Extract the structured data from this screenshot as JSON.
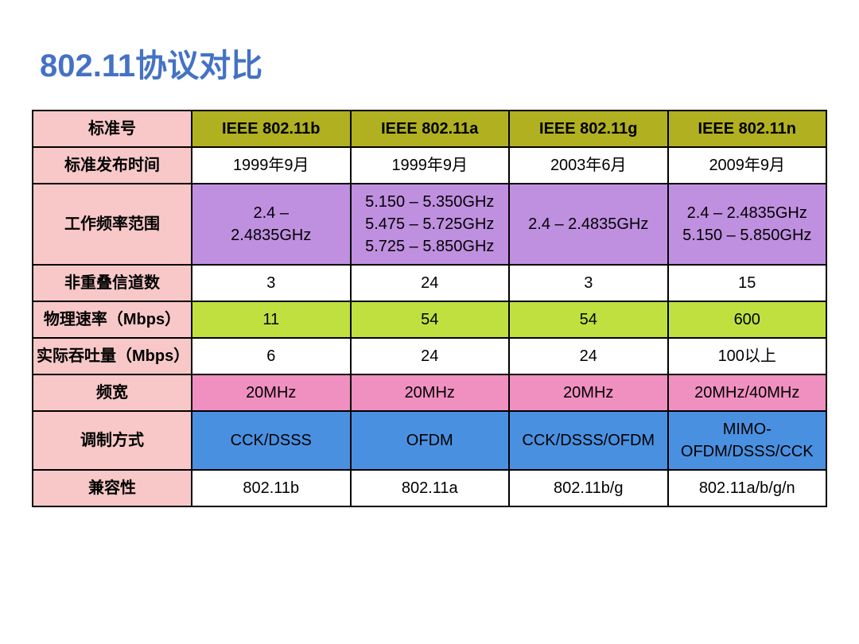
{
  "title": "802.11协议对比",
  "table": {
    "columns": [
      {
        "label": "标准号",
        "bg": "row-label"
      },
      {
        "label": "IEEE 802.11b",
        "bg": "hdr-cell"
      },
      {
        "label": "IEEE 802.11a",
        "bg": "hdr-cell"
      },
      {
        "label": "IEEE 802.11g",
        "bg": "hdr-cell"
      },
      {
        "label": "IEEE 802.11n",
        "bg": "hdr-cell"
      }
    ],
    "rows": [
      {
        "label": "标准发布时间",
        "cells": [
          {
            "text": "1999年9月",
            "bg": "bg-white"
          },
          {
            "text": "1999年9月",
            "bg": "bg-white"
          },
          {
            "text": "2003年6月",
            "bg": "bg-white"
          },
          {
            "text": "2009年9月",
            "bg": "bg-white"
          }
        ]
      },
      {
        "label": "工作频率范围",
        "cells": [
          {
            "text": "2.4 –\n2.4835GHz",
            "bg": "bg-purple"
          },
          {
            "text": "5.150 – 5.350GHz\n5.475 – 5.725GHz\n5.725 – 5.850GHz",
            "bg": "bg-purple"
          },
          {
            "text": "2.4 – 2.4835GHz",
            "bg": "bg-purple"
          },
          {
            "text": "2.4 – 2.4835GHz\n5.150 – 5.850GHz",
            "bg": "bg-purple"
          }
        ]
      },
      {
        "label": "非重叠信道数",
        "cells": [
          {
            "text": "3",
            "bg": "bg-white"
          },
          {
            "text": "24",
            "bg": "bg-white"
          },
          {
            "text": "3",
            "bg": "bg-white"
          },
          {
            "text": "15",
            "bg": "bg-white"
          }
        ]
      },
      {
        "label": "物理速率（Mbps）",
        "cells": [
          {
            "text": "11",
            "bg": "bg-lime"
          },
          {
            "text": "54",
            "bg": "bg-lime"
          },
          {
            "text": "54",
            "bg": "bg-lime"
          },
          {
            "text": "600",
            "bg": "bg-lime"
          }
        ]
      },
      {
        "label": "实际吞吐量（Mbps）",
        "cells": [
          {
            "text": "6",
            "bg": "bg-white"
          },
          {
            "text": "24",
            "bg": "bg-white"
          },
          {
            "text": "24",
            "bg": "bg-white"
          },
          {
            "text": "100以上",
            "bg": "bg-white"
          }
        ]
      },
      {
        "label": "频宽",
        "cells": [
          {
            "text": "20MHz",
            "bg": "bg-pink"
          },
          {
            "text": "20MHz",
            "bg": "bg-pink"
          },
          {
            "text": "20MHz",
            "bg": "bg-pink"
          },
          {
            "text": "20MHz/40MHz",
            "bg": "bg-pink"
          }
        ]
      },
      {
        "label": "调制方式",
        "cells": [
          {
            "text": "CCK/DSSS",
            "bg": "bg-blue"
          },
          {
            "text": "OFDM",
            "bg": "bg-blue"
          },
          {
            "text": "CCK/DSSS/OFDM",
            "bg": "bg-blue"
          },
          {
            "text": "MIMO-\nOFDM/DSSS/CCK",
            "bg": "bg-blue"
          }
        ]
      },
      {
        "label": "兼容性",
        "cells": [
          {
            "text": "802.11b",
            "bg": "bg-white"
          },
          {
            "text": "802.11a",
            "bg": "bg-white"
          },
          {
            "text": "802.11b/g",
            "bg": "bg-white"
          },
          {
            "text": "802.11a/b/g/n",
            "bg": "bg-white"
          }
        ]
      }
    ]
  },
  "style": {
    "title_color": "#4472c4",
    "title_fontsize": 40,
    "cell_fontsize": 20,
    "border_color": "#000000",
    "row_label_bg": "#f8c8c8",
    "header_bg": "#b0b020",
    "purple_bg": "#c090e0",
    "lime_bg": "#c0e040",
    "pink_bg": "#f090c0",
    "blue_bg": "#4a90e0",
    "white_bg": "#ffffff"
  }
}
